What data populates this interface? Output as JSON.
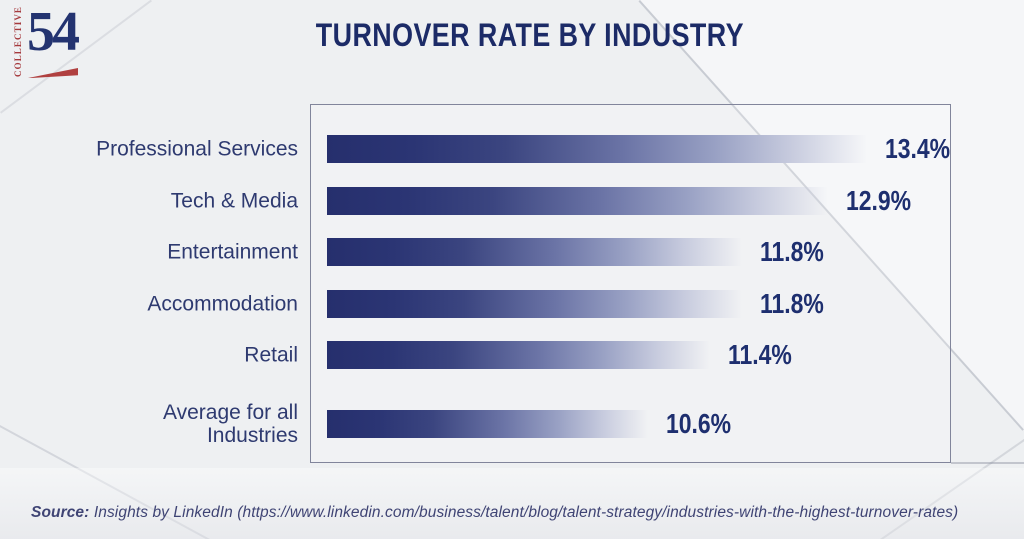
{
  "brand": {
    "vertical_text": "COLLECTIVE",
    "number": "54",
    "navy": "#233370",
    "red": "#b04040"
  },
  "header": {
    "title": "TURNOVER RATE BY INDUSTRY"
  },
  "chart_data": {
    "type": "bar",
    "orientation": "horizontal",
    "title": "TURNOVER RATE BY INDUSTRY",
    "categories": [
      "Professional Services",
      "Tech & Media",
      "Entertainment",
      "Accommodation",
      "Retail",
      "Average for all Industries"
    ],
    "values": [
      13.4,
      12.9,
      11.8,
      11.8,
      11.4,
      10.6
    ],
    "value_labels": [
      "13.4%",
      "12.9%",
      "11.8%",
      "11.8%",
      "11.4%",
      "10.6%"
    ],
    "xlim": [
      6.5,
      14.5
    ],
    "grid": false,
    "legend": false,
    "bar_color_start": "#262f6d",
    "bar_color_end": "#eef0f3",
    "value_label_color": "#1e2f6f",
    "category_label_color": "#2e3a70"
  },
  "footer": {
    "source_label": "Source:",
    "source_text": " Insights by LinkedIn (https://www.linkedin.com/business/talent/blog/talent-strategy/industries-with-the-highest-turnover-rates)"
  }
}
